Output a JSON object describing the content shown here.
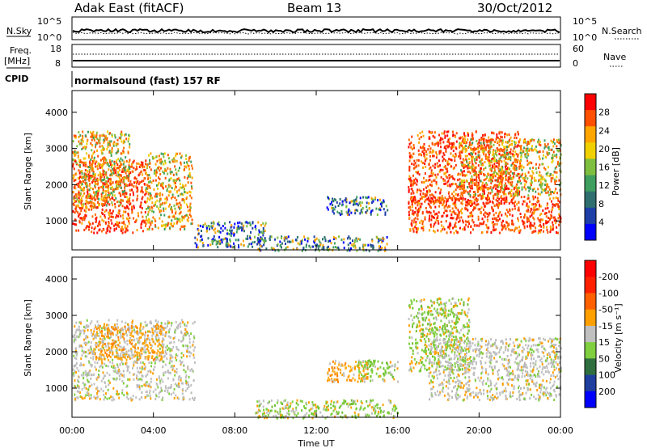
{
  "header": {
    "site": "Adak East (fitACF)",
    "beam": "Beam 13",
    "date": "30/Oct/2012",
    "cpid_label": "CPID",
    "cpid_value": "normalsound (fast) 157 RF"
  },
  "noise_panel": {
    "left_label": "N.Sky",
    "right_label": "N.Search",
    "left_ticks": [
      "10^5",
      "10^0"
    ],
    "right_ticks": [
      "10^5",
      "10^0"
    ]
  },
  "freq_panel": {
    "left_label_1": "Freq.",
    "left_label_2": "[MHz]",
    "right_label": "Nave",
    "left_ticks": [
      "18",
      "8"
    ],
    "right_ticks": [
      "60",
      "0"
    ]
  },
  "colors": {
    "power_scale": [
      "#0000ff",
      "#1f3fa8",
      "#2f6f6f",
      "#3f9f5f",
      "#7fbf3f",
      "#f0d000",
      "#ffa500",
      "#ff5000",
      "#ff0000"
    ],
    "velocity_scale": [
      "#0000ff",
      "#1f3f9f",
      "#2f6f3f",
      "#7fcf3f",
      "#c0c0c0",
      "#ffa000",
      "#ff6000",
      "#ff2000",
      "#ff0000"
    ]
  },
  "chart_data": [
    {
      "type": "heatmap",
      "name": "power",
      "ylabel": "Slant Range [km]",
      "yticks": [
        "1000",
        "2000",
        "3000",
        "4000"
      ],
      "ylim": [
        200,
        4600
      ],
      "xlim": [
        0,
        24
      ],
      "colorbar_label": "Power [dB]",
      "colorbar_ticks": [
        "4",
        "8",
        "12",
        "16",
        "20",
        "24",
        "28"
      ],
      "regions": [
        {
          "t0": 0.0,
          "t1": 3.6,
          "r0": 700,
          "r1": 2700,
          "level": "high"
        },
        {
          "t0": 0.0,
          "t1": 2.8,
          "r0": 1400,
          "r1": 3500,
          "level": "mid"
        },
        {
          "t0": 3.6,
          "t1": 5.9,
          "r0": 800,
          "r1": 2900,
          "level": "mid"
        },
        {
          "t0": 6.0,
          "t1": 9.5,
          "r0": 300,
          "r1": 1000,
          "level": "low"
        },
        {
          "t0": 9.0,
          "t1": 15.5,
          "r0": 200,
          "r1": 600,
          "level": "low"
        },
        {
          "t0": 12.5,
          "t1": 15.5,
          "r0": 1200,
          "r1": 1700,
          "level": "low"
        },
        {
          "t0": 16.5,
          "t1": 24.0,
          "r0": 700,
          "r1": 1700,
          "level": "high"
        },
        {
          "t0": 16.5,
          "t1": 22.0,
          "r0": 1500,
          "r1": 3500,
          "level": "high"
        },
        {
          "t0": 19.0,
          "t1": 24.0,
          "r0": 1700,
          "r1": 3300,
          "level": "mid"
        }
      ]
    },
    {
      "type": "heatmap",
      "name": "velocity",
      "ylabel": "Slant Range [km]",
      "yticks": [
        "1000",
        "2000",
        "3000",
        "4000"
      ],
      "ylim": [
        200,
        4600
      ],
      "xlim": [
        0,
        24
      ],
      "xlabel": "Time UT",
      "xticks": [
        "00:00",
        "04:00",
        "08:00",
        "12:00",
        "16:00",
        "20:00",
        "00:00"
      ],
      "colorbar_label": "Velocity [m s⁻¹]",
      "colorbar_ticks": [
        "200",
        "100",
        "50",
        "15",
        "-15",
        "-50",
        "-100",
        "-200"
      ],
      "regions": [
        {
          "t0": 0.0,
          "t1": 6.0,
          "r0": 700,
          "r1": 2900,
          "level": "gray"
        },
        {
          "t0": 1.0,
          "t1": 4.5,
          "r0": 1800,
          "r1": 2800,
          "level": "orange"
        },
        {
          "t0": 12.5,
          "t1": 14.5,
          "r0": 1200,
          "r1": 1800,
          "level": "orange"
        },
        {
          "t0": 14.0,
          "t1": 16.0,
          "r0": 1200,
          "r1": 1800,
          "level": "green"
        },
        {
          "t0": 16.5,
          "t1": 19.5,
          "r0": 1500,
          "r1": 3500,
          "level": "green"
        },
        {
          "t0": 17.5,
          "t1": 24.0,
          "r0": 700,
          "r1": 2400,
          "level": "gray"
        },
        {
          "t0": 9.0,
          "t1": 16.0,
          "r0": 200,
          "r1": 700,
          "level": "green"
        }
      ]
    }
  ]
}
